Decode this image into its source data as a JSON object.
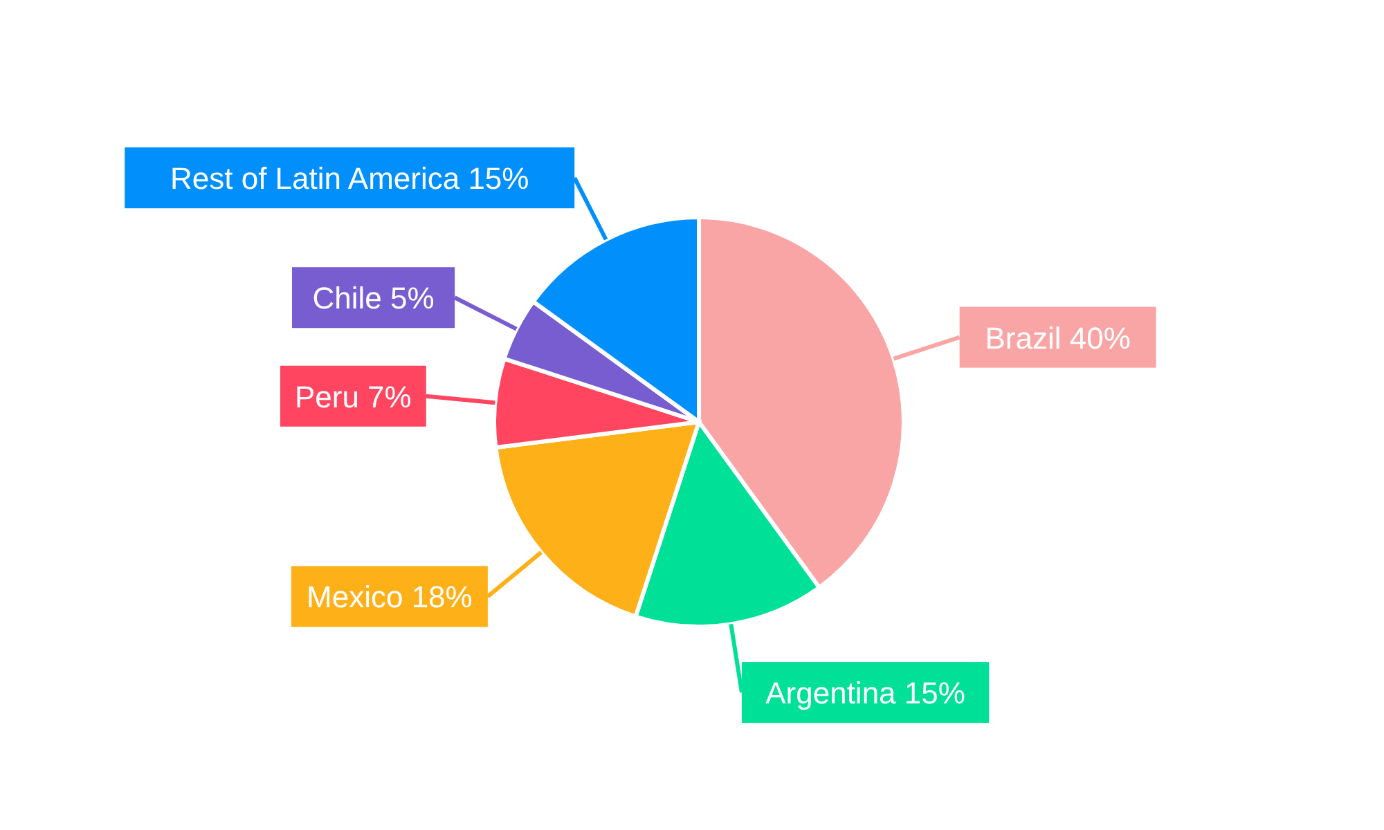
{
  "chart_data": {
    "type": "pie",
    "categories": [
      "Brazil",
      "Argentina",
      "Mexico",
      "Peru",
      "Chile",
      "Rest of Latin America"
    ],
    "values": [
      40,
      15,
      18,
      7,
      5,
      15
    ],
    "value_labels": [
      "40%",
      "15%",
      "18%",
      "7%",
      "5%",
      "15%"
    ],
    "colors": [
      "#f9a5a6",
      "#00e096",
      "#feb019",
      "#ff4560",
      "#775dd0",
      "#008ffb"
    ],
    "legend": false
  }
}
